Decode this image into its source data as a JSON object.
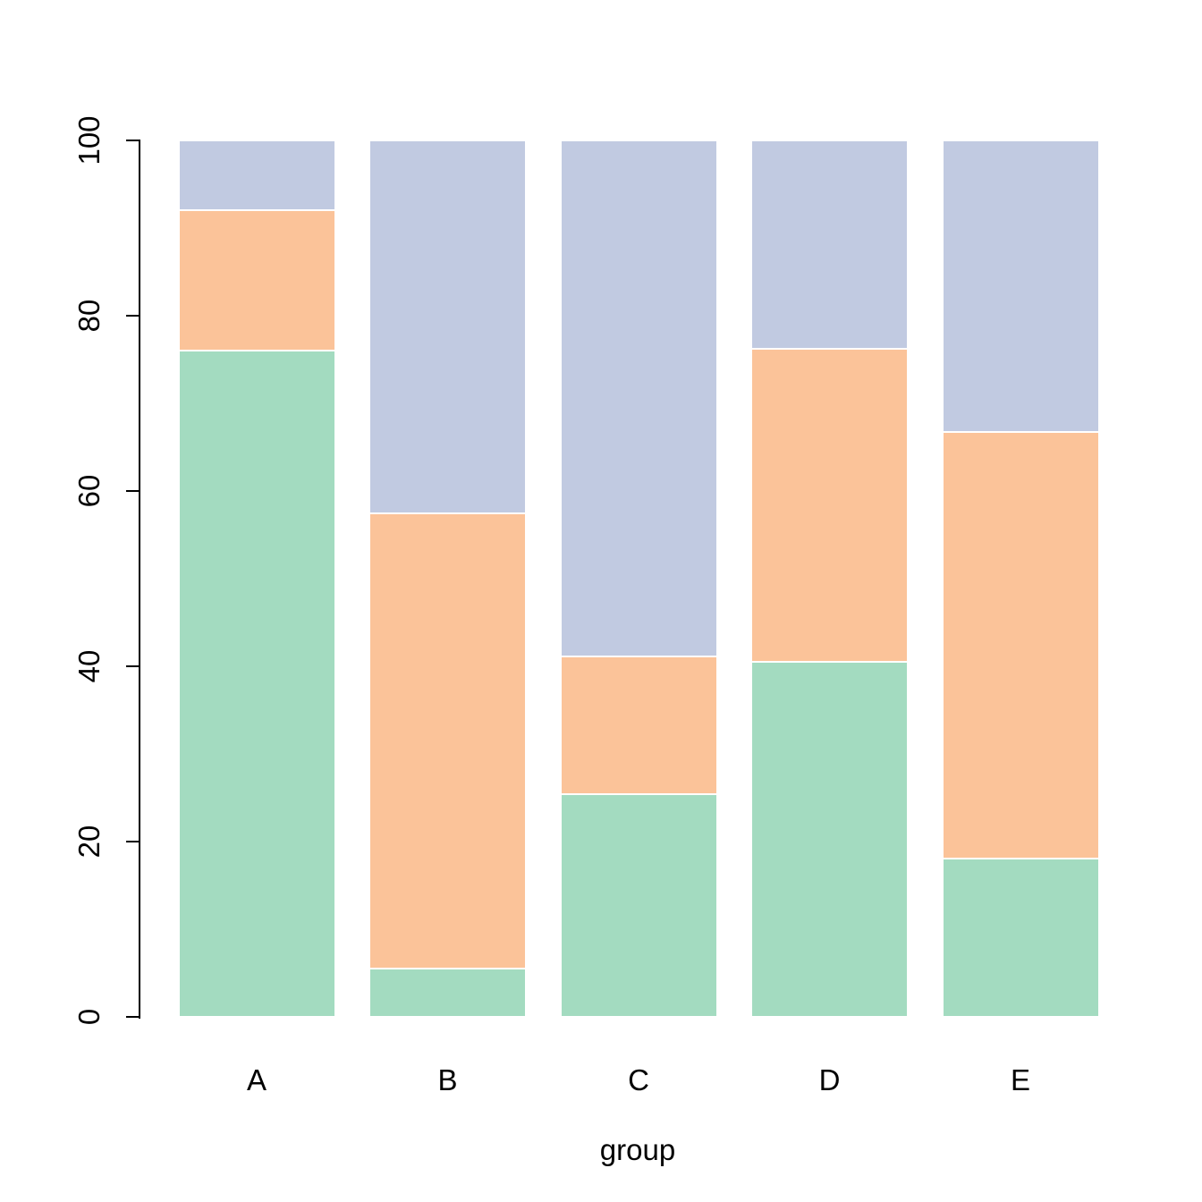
{
  "chart_data": {
    "type": "bar",
    "stacked": true,
    "percent_scale": true,
    "title": "",
    "xlabel": "group",
    "ylabel": "",
    "categories": [
      "A",
      "B",
      "C",
      "D",
      "E"
    ],
    "series": [
      {
        "name": "green-bottom-segment",
        "color": "#A3DBC0",
        "values": [
          76.0,
          5.5,
          25.4,
          40.5,
          18.1
        ]
      },
      {
        "name": "orange-middle-segment",
        "color": "#FBC399",
        "values": [
          16.0,
          51.9,
          15.7,
          35.7,
          48.6
        ]
      },
      {
        "name": "blue-top-segment",
        "color": "#C1CAE1",
        "values": [
          8.0,
          42.6,
          58.9,
          23.8,
          33.3
        ]
      }
    ],
    "ylim": [
      0,
      100
    ],
    "yticks": [
      0,
      20,
      40,
      60,
      80,
      100
    ],
    "grid": false,
    "legend": "none",
    "axis_color": "#000000",
    "background_color": "#ffffff"
  }
}
